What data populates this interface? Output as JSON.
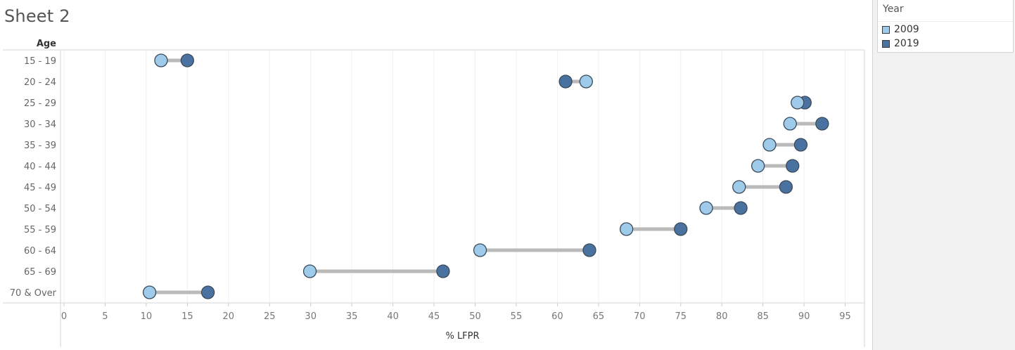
{
  "sheet": {
    "title": "Sheet 2"
  },
  "legend": {
    "title": "Year",
    "items": [
      {
        "label": "2009",
        "color": "#9fcbeb"
      },
      {
        "label": "2019",
        "color": "#4a72a0"
      }
    ]
  },
  "chart_data": {
    "type": "dumbbell",
    "row_header": "Age",
    "xlabel": "% LFPR",
    "xlim": [
      0,
      97
    ],
    "xticks": [
      0,
      5,
      10,
      15,
      20,
      25,
      30,
      35,
      40,
      45,
      50,
      55,
      60,
      65,
      70,
      75,
      80,
      85,
      90,
      95
    ],
    "grid": true,
    "categories": [
      "15 - 19",
      "20 - 24",
      "25 - 29",
      "30 - 34",
      "35 - 39",
      "40 - 44",
      "45 - 49",
      "50 - 54",
      "55 - 59",
      "60 - 64",
      "65 - 69",
      "70 & Over"
    ],
    "series": [
      {
        "name": "2009",
        "color": "#9fcbeb",
        "values": [
          11.8,
          63.5,
          89.2,
          88.3,
          85.8,
          84.4,
          82.1,
          78.1,
          68.4,
          50.6,
          29.9,
          10.4
        ]
      },
      {
        "name": "2019",
        "color": "#4a72a0",
        "values": [
          15.0,
          61.0,
          90.1,
          92.2,
          89.6,
          88.6,
          87.8,
          82.3,
          75.0,
          63.9,
          46.1,
          17.5
        ]
      }
    ]
  }
}
